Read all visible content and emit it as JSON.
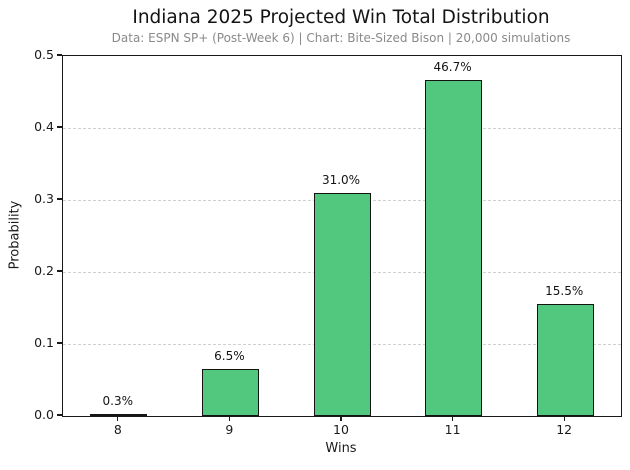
{
  "chart_data": {
    "type": "bar",
    "title": "Indiana 2025 Projected Win Total Distribution",
    "subtitle": "Data: ESPN SP+ (Post-Week 6) | Chart: Bite-Sized Bison | 20,000 simulations",
    "xlabel": "Wins",
    "ylabel": "Probability",
    "categories": [
      "8",
      "9",
      "10",
      "11",
      "12"
    ],
    "values": [
      0.003,
      0.065,
      0.31,
      0.467,
      0.155
    ],
    "bar_labels": [
      "0.3%",
      "6.5%",
      "31.0%",
      "46.7%",
      "15.5%"
    ],
    "ylim": [
      0.0,
      0.5
    ],
    "yticks": [
      0.0,
      0.1,
      0.2,
      0.3,
      0.4,
      0.5
    ],
    "ytick_labels": [
      "0.0",
      "0.1",
      "0.2",
      "0.3",
      "0.4",
      "0.5"
    ],
    "grid": "horizontal dashed, behind bars",
    "legend": "none",
    "colors": {
      "bar_fill": "#52c77e",
      "bar_edge": "#141414",
      "gridline": "#d0d0d0",
      "subtitle_text": "#8a8a8a",
      "axis_text": "#1a1a1a",
      "background": "#ffffff"
    }
  }
}
